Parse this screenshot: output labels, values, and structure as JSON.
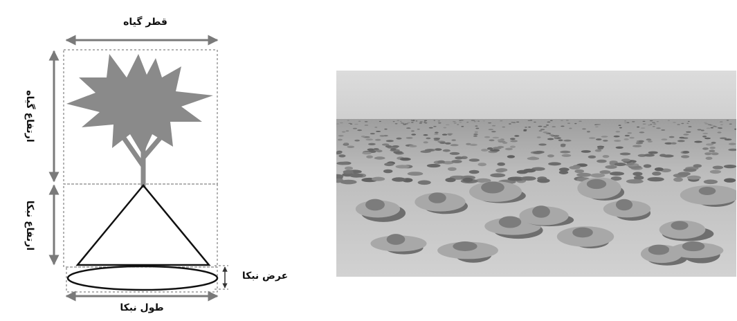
{
  "diagram": {
    "plant_diameter_label": "قطر گیاه",
    "plant_height_label": "ارتفاع گیاه",
    "nebka_height_label": "ارتفاع نبکا",
    "nebka_width_label": "عرض نبکا",
    "nebka_length_label": "طول نبکا"
  },
  "colors": {
    "plant": "#8a8a8a",
    "arrow": "#7a7a7a",
    "sky": "#d8d8d8",
    "sand": "#c4c4c4"
  }
}
